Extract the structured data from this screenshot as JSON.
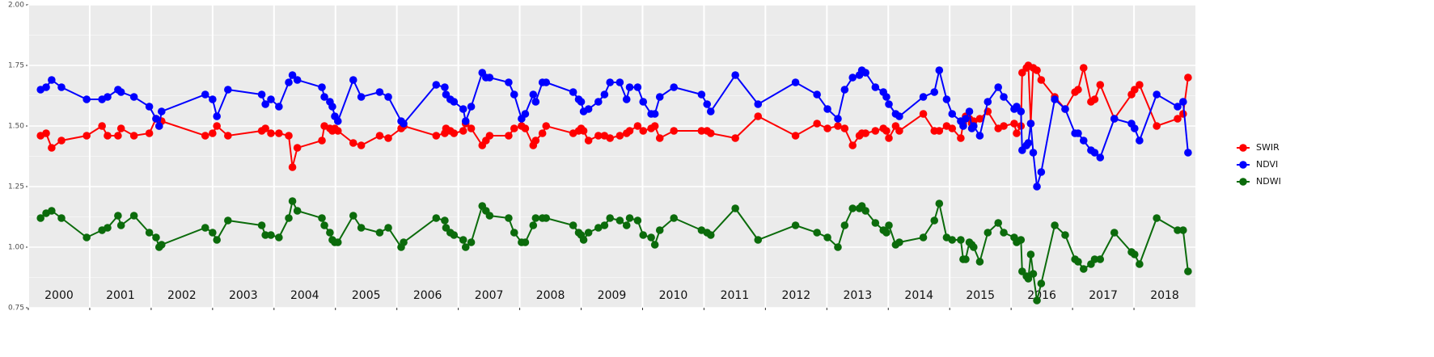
{
  "chart_data": {
    "type": "line",
    "x": [
      2000.2,
      2000.29,
      2000.38,
      2000.54,
      2000.95,
      2001.2,
      2001.29,
      2001.46,
      2001.51,
      2001.72,
      2001.97,
      2002.08,
      2002.13,
      2002.17,
      2002.88,
      2003.0,
      2003.07,
      2003.25,
      2003.8,
      2003.86,
      2003.95,
      2004.08,
      2004.24,
      2004.3,
      2004.38,
      2004.78,
      2004.82,
      2004.91,
      2004.95,
      2004.99,
      2005.04,
      2005.29,
      2005.42,
      2005.72,
      2005.86,
      2006.07,
      2006.11,
      2006.64,
      2006.78,
      2006.8,
      2006.87,
      2006.93,
      2007.08,
      2007.12,
      2007.21,
      2007.39,
      2007.45,
      2007.51,
      2007.82,
      2007.91,
      2008.03,
      2008.09,
      2008.22,
      2008.26,
      2008.37,
      2008.43,
      2008.87,
      2008.96,
      2009.0,
      2009.04,
      2009.12,
      2009.28,
      2009.38,
      2009.47,
      2009.63,
      2009.74,
      2009.79,
      2009.92,
      2010.01,
      2010.14,
      2010.2,
      2010.28,
      2010.51,
      2010.96,
      2011.05,
      2011.11,
      2011.51,
      2011.88,
      2012.49,
      2012.84,
      2013.01,
      2013.18,
      2013.29,
      2013.42,
      2013.53,
      2013.57,
      2013.63,
      2013.79,
      2013.92,
      2013.97,
      2014.01,
      2014.12,
      2014.18,
      2014.57,
      2014.75,
      2014.83,
      2014.95,
      2015.04,
      2015.18,
      2015.22,
      2015.26,
      2015.32,
      2015.36,
      2015.39,
      2015.49,
      2015.62,
      2015.79,
      2015.88,
      2016.05,
      2016.09,
      2016.16,
      2016.18,
      2016.25,
      2016.28,
      2016.32,
      2016.36,
      2016.42,
      2016.49,
      2016.71,
      2016.88,
      2017.04,
      2017.09,
      2017.18,
      2017.3,
      2017.36,
      2017.45,
      2017.68,
      2017.96,
      2018.01,
      2018.09,
      2018.37,
      2018.71,
      2018.8,
      2018.88
    ],
    "series": [
      {
        "name": "SWIR",
        "color": "#ff0000",
        "values": [
          1.46,
          1.47,
          1.41,
          1.44,
          1.46,
          1.5,
          1.46,
          1.46,
          1.49,
          1.46,
          1.47,
          1.53,
          1.5,
          1.52,
          1.46,
          1.47,
          1.5,
          1.46,
          1.48,
          1.49,
          1.47,
          1.47,
          1.46,
          1.33,
          1.41,
          1.44,
          1.5,
          1.49,
          1.48,
          1.49,
          1.48,
          1.43,
          1.42,
          1.46,
          1.45,
          1.49,
          1.5,
          1.46,
          1.47,
          1.49,
          1.48,
          1.47,
          1.48,
          1.51,
          1.49,
          1.42,
          1.44,
          1.46,
          1.46,
          1.49,
          1.5,
          1.49,
          1.42,
          1.44,
          1.47,
          1.5,
          1.47,
          1.48,
          1.49,
          1.48,
          1.44,
          1.46,
          1.46,
          1.45,
          1.46,
          1.47,
          1.48,
          1.5,
          1.48,
          1.49,
          1.5,
          1.45,
          1.48,
          1.48,
          1.48,
          1.47,
          1.45,
          1.54,
          1.46,
          1.51,
          1.49,
          1.5,
          1.49,
          1.42,
          1.46,
          1.47,
          1.47,
          1.48,
          1.49,
          1.48,
          1.45,
          1.5,
          1.48,
          1.55,
          1.48,
          1.48,
          1.5,
          1.49,
          1.45,
          1.51,
          1.54,
          1.53,
          1.51,
          1.52,
          1.53,
          1.56,
          1.49,
          1.5,
          1.51,
          1.47,
          1.5,
          1.72,
          1.74,
          1.75,
          1.51,
          1.74,
          1.73,
          1.69,
          1.62,
          1.57,
          1.64,
          1.65,
          1.74,
          1.6,
          1.61,
          1.67,
          1.53,
          1.63,
          1.65,
          1.67,
          1.5,
          1.53,
          1.55,
          1.7
        ]
      },
      {
        "name": "NDVI",
        "color": "#0000ff",
        "values": [
          1.65,
          1.66,
          1.69,
          1.66,
          1.61,
          1.61,
          1.62,
          1.65,
          1.64,
          1.62,
          1.58,
          1.53,
          1.5,
          1.56,
          1.63,
          1.61,
          1.54,
          1.65,
          1.63,
          1.59,
          1.61,
          1.58,
          1.68,
          1.71,
          1.69,
          1.66,
          1.62,
          1.6,
          1.58,
          1.54,
          1.52,
          1.69,
          1.62,
          1.64,
          1.62,
          1.52,
          1.51,
          1.67,
          1.66,
          1.63,
          1.61,
          1.6,
          1.57,
          1.52,
          1.58,
          1.72,
          1.7,
          1.7,
          1.68,
          1.63,
          1.53,
          1.55,
          1.63,
          1.6,
          1.68,
          1.68,
          1.64,
          1.61,
          1.6,
          1.56,
          1.57,
          1.6,
          1.63,
          1.68,
          1.68,
          1.61,
          1.66,
          1.66,
          1.6,
          1.55,
          1.55,
          1.62,
          1.66,
          1.63,
          1.59,
          1.56,
          1.71,
          1.59,
          1.68,
          1.63,
          1.57,
          1.53,
          1.65,
          1.7,
          1.71,
          1.73,
          1.72,
          1.66,
          1.64,
          1.62,
          1.59,
          1.55,
          1.54,
          1.62,
          1.64,
          1.73,
          1.61,
          1.55,
          1.52,
          1.5,
          1.53,
          1.56,
          1.49,
          1.5,
          1.46,
          1.6,
          1.66,
          1.62,
          1.57,
          1.58,
          1.56,
          1.4,
          1.42,
          1.43,
          1.51,
          1.39,
          1.25,
          1.31,
          1.61,
          1.57,
          1.47,
          1.47,
          1.44,
          1.4,
          1.39,
          1.37,
          1.53,
          1.51,
          1.49,
          1.44,
          1.63,
          1.58,
          1.6,
          1.39
        ]
      },
      {
        "name": "NDWI",
        "color": "#0b6b0b",
        "values": [
          1.12,
          1.14,
          1.15,
          1.12,
          1.04,
          1.07,
          1.08,
          1.13,
          1.09,
          1.13,
          1.06,
          1.04,
          1.0,
          1.01,
          1.08,
          1.06,
          1.03,
          1.11,
          1.09,
          1.05,
          1.05,
          1.04,
          1.12,
          1.19,
          1.15,
          1.12,
          1.09,
          1.06,
          1.03,
          1.02,
          1.02,
          1.13,
          1.08,
          1.06,
          1.08,
          1.0,
          1.02,
          1.12,
          1.11,
          1.08,
          1.06,
          1.05,
          1.03,
          1.0,
          1.02,
          1.17,
          1.15,
          1.13,
          1.12,
          1.06,
          1.02,
          1.02,
          1.09,
          1.12,
          1.12,
          1.12,
          1.09,
          1.06,
          1.05,
          1.03,
          1.06,
          1.08,
          1.09,
          1.12,
          1.11,
          1.09,
          1.12,
          1.11,
          1.05,
          1.04,
          1.01,
          1.07,
          1.12,
          1.07,
          1.06,
          1.05,
          1.16,
          1.03,
          1.09,
          1.06,
          1.04,
          1.0,
          1.09,
          1.16,
          1.16,
          1.17,
          1.15,
          1.1,
          1.07,
          1.06,
          1.09,
          1.01,
          1.02,
          1.04,
          1.11,
          1.18,
          1.04,
          1.03,
          1.03,
          0.95,
          0.95,
          1.02,
          1.01,
          1.0,
          0.94,
          1.06,
          1.1,
          1.06,
          1.04,
          1.02,
          1.03,
          0.9,
          0.88,
          0.87,
          0.97,
          0.89,
          0.78,
          0.85,
          1.09,
          1.05,
          0.95,
          0.94,
          0.91,
          0.93,
          0.95,
          0.95,
          1.06,
          0.98,
          0.97,
          0.93,
          1.12,
          1.07,
          1.07,
          0.9
        ]
      }
    ],
    "xlim": [
      2000,
      2019
    ],
    "xticks": [
      2000,
      2001,
      2002,
      2003,
      2004,
      2005,
      2006,
      2007,
      2008,
      2009,
      2010,
      2011,
      2012,
      2013,
      2014,
      2015,
      2016,
      2017,
      2018
    ],
    "ylim": [
      0.75,
      2
    ],
    "yticks": [
      0.75,
      {
        "value": 1,
        "label": "1.00"
      },
      1.25,
      {
        "value": 1.5,
        "label": "1.50"
      },
      1.75,
      {
        "value": 2,
        "label": "2.00"
      }
    ],
    "grid": true,
    "legend": "right"
  }
}
